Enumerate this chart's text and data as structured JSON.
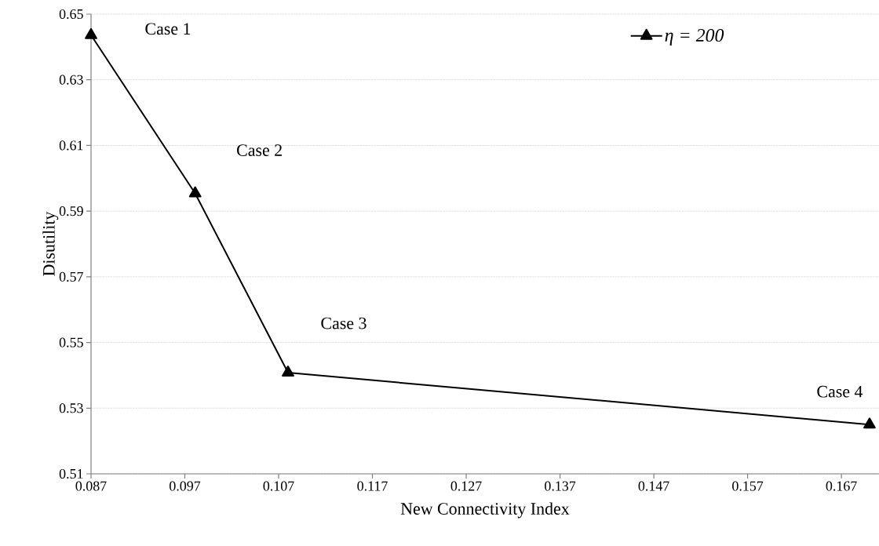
{
  "chart_data": {
    "type": "line",
    "xlabel": "New Connectivity Index",
    "ylabel": "Disutility",
    "series": [
      {
        "name": "η = 200",
        "color": "#000000",
        "x": [
          0.087,
          0.0981,
          0.108,
          0.17
        ],
        "values": [
          0.6436,
          0.5954,
          0.5408,
          0.525
        ]
      }
    ],
    "xlim": [
      0.087,
      0.171
    ],
    "ylim": [
      0.51,
      0.65
    ],
    "xticks": [
      0.087,
      0.097,
      0.107,
      0.117,
      0.127,
      0.137,
      0.147,
      0.157,
      0.167
    ],
    "yticks": [
      0.51,
      0.53,
      0.55,
      0.57,
      0.59,
      0.61,
      0.63,
      0.65
    ],
    "annotations": [
      "Case 1",
      "Case 2",
      "Case 3",
      "Case 4"
    ],
    "grid": "y",
    "legend": "top right",
    "marker": "triangle",
    "line_style": "solid"
  }
}
